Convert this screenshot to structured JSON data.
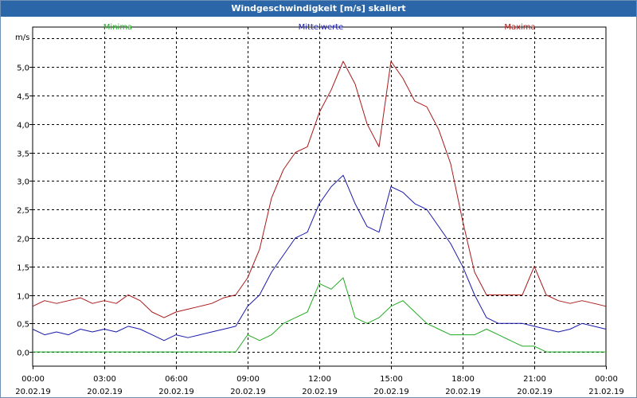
{
  "window": {
    "title": "Windgeschwindigkeit [m/s] skaliert"
  },
  "chart_data": {
    "type": "line",
    "title": "Windgeschwindigkeit [m/s] skaliert",
    "ylabel": "m/s",
    "xlabel": "",
    "ylim": [
      -0.25,
      5.7
    ],
    "xlim": [
      0,
      24
    ],
    "grid": true,
    "yticks": [
      0.0,
      0.5,
      1.0,
      1.5,
      2.0,
      2.5,
      3.0,
      3.5,
      4.0,
      4.5,
      5.0
    ],
    "ytick_labels": [
      "0,0",
      "0,5",
      "1,0",
      "1,5",
      "2,0",
      "2,5",
      "3,0",
      "3,5",
      "4,0",
      "4,5",
      "5,0"
    ],
    "xticks": [
      0,
      3,
      6,
      9,
      12,
      15,
      18,
      21,
      24
    ],
    "xtick_times": [
      "00:00",
      "03:00",
      "06:00",
      "09:00",
      "12:00",
      "15:00",
      "18:00",
      "21:00",
      "00:00"
    ],
    "xtick_dates": [
      "20.02.19",
      "20.02.19",
      "20.02.19",
      "20.02.19",
      "20.02.19",
      "20.02.19",
      "20.02.19",
      "20.02.19",
      "21.02.19"
    ],
    "x": [
      0.0,
      0.5,
      1.0,
      1.5,
      2.0,
      2.5,
      3.0,
      3.5,
      4.0,
      4.5,
      5.0,
      5.5,
      6.0,
      6.5,
      7.0,
      7.5,
      8.0,
      8.5,
      9.0,
      9.5,
      10.0,
      10.5,
      11.0,
      11.5,
      12.0,
      12.5,
      13.0,
      13.5,
      14.0,
      14.5,
      15.0,
      15.5,
      16.0,
      16.5,
      17.0,
      17.5,
      18.0,
      18.5,
      19.0,
      19.5,
      20.0,
      20.5,
      21.0,
      21.5,
      22.0,
      22.5,
      23.0,
      23.5,
      24.0
    ],
    "series": [
      {
        "name": "Minima",
        "color": "#22aa22",
        "values": [
          0.0,
          0.0,
          0.0,
          0.0,
          0.0,
          0.0,
          0.0,
          0.0,
          0.0,
          0.0,
          0.0,
          0.0,
          0.0,
          0.0,
          0.0,
          0.0,
          0.0,
          0.0,
          0.3,
          0.2,
          0.3,
          0.5,
          0.6,
          0.7,
          1.2,
          1.1,
          1.3,
          0.6,
          0.5,
          0.6,
          0.8,
          0.9,
          0.7,
          0.5,
          0.4,
          0.3,
          0.3,
          0.3,
          0.4,
          0.3,
          0.2,
          0.1,
          0.1,
          0.0,
          0.0,
          0.0,
          0.0,
          0.0,
          0.0
        ]
      },
      {
        "name": "Mittelwerte",
        "color": "#1a1aaa",
        "values": [
          0.4,
          0.3,
          0.35,
          0.3,
          0.4,
          0.35,
          0.4,
          0.35,
          0.45,
          0.4,
          0.3,
          0.2,
          0.3,
          0.25,
          0.3,
          0.35,
          0.4,
          0.45,
          0.8,
          1.0,
          1.4,
          1.7,
          2.0,
          2.1,
          2.6,
          2.9,
          3.1,
          2.6,
          2.2,
          2.1,
          2.9,
          2.8,
          2.6,
          2.5,
          2.2,
          1.9,
          1.5,
          1.0,
          0.6,
          0.5,
          0.5,
          0.5,
          0.45,
          0.4,
          0.35,
          0.4,
          0.5,
          0.45,
          0.4
        ]
      },
      {
        "name": "Maxima",
        "color": "#aa1a1a",
        "values": [
          0.8,
          0.9,
          0.85,
          0.9,
          0.95,
          0.85,
          0.9,
          0.85,
          1.0,
          0.9,
          0.7,
          0.6,
          0.7,
          0.75,
          0.8,
          0.85,
          0.95,
          1.0,
          1.3,
          1.8,
          2.7,
          3.2,
          3.5,
          3.6,
          4.2,
          4.6,
          5.1,
          4.7,
          4.0,
          3.6,
          5.1,
          4.8,
          4.4,
          4.3,
          3.9,
          3.3,
          2.3,
          1.4,
          1.0,
          1.0,
          1.0,
          1.0,
          1.5,
          1.0,
          0.9,
          0.85,
          0.9,
          0.85,
          0.8
        ]
      }
    ]
  }
}
